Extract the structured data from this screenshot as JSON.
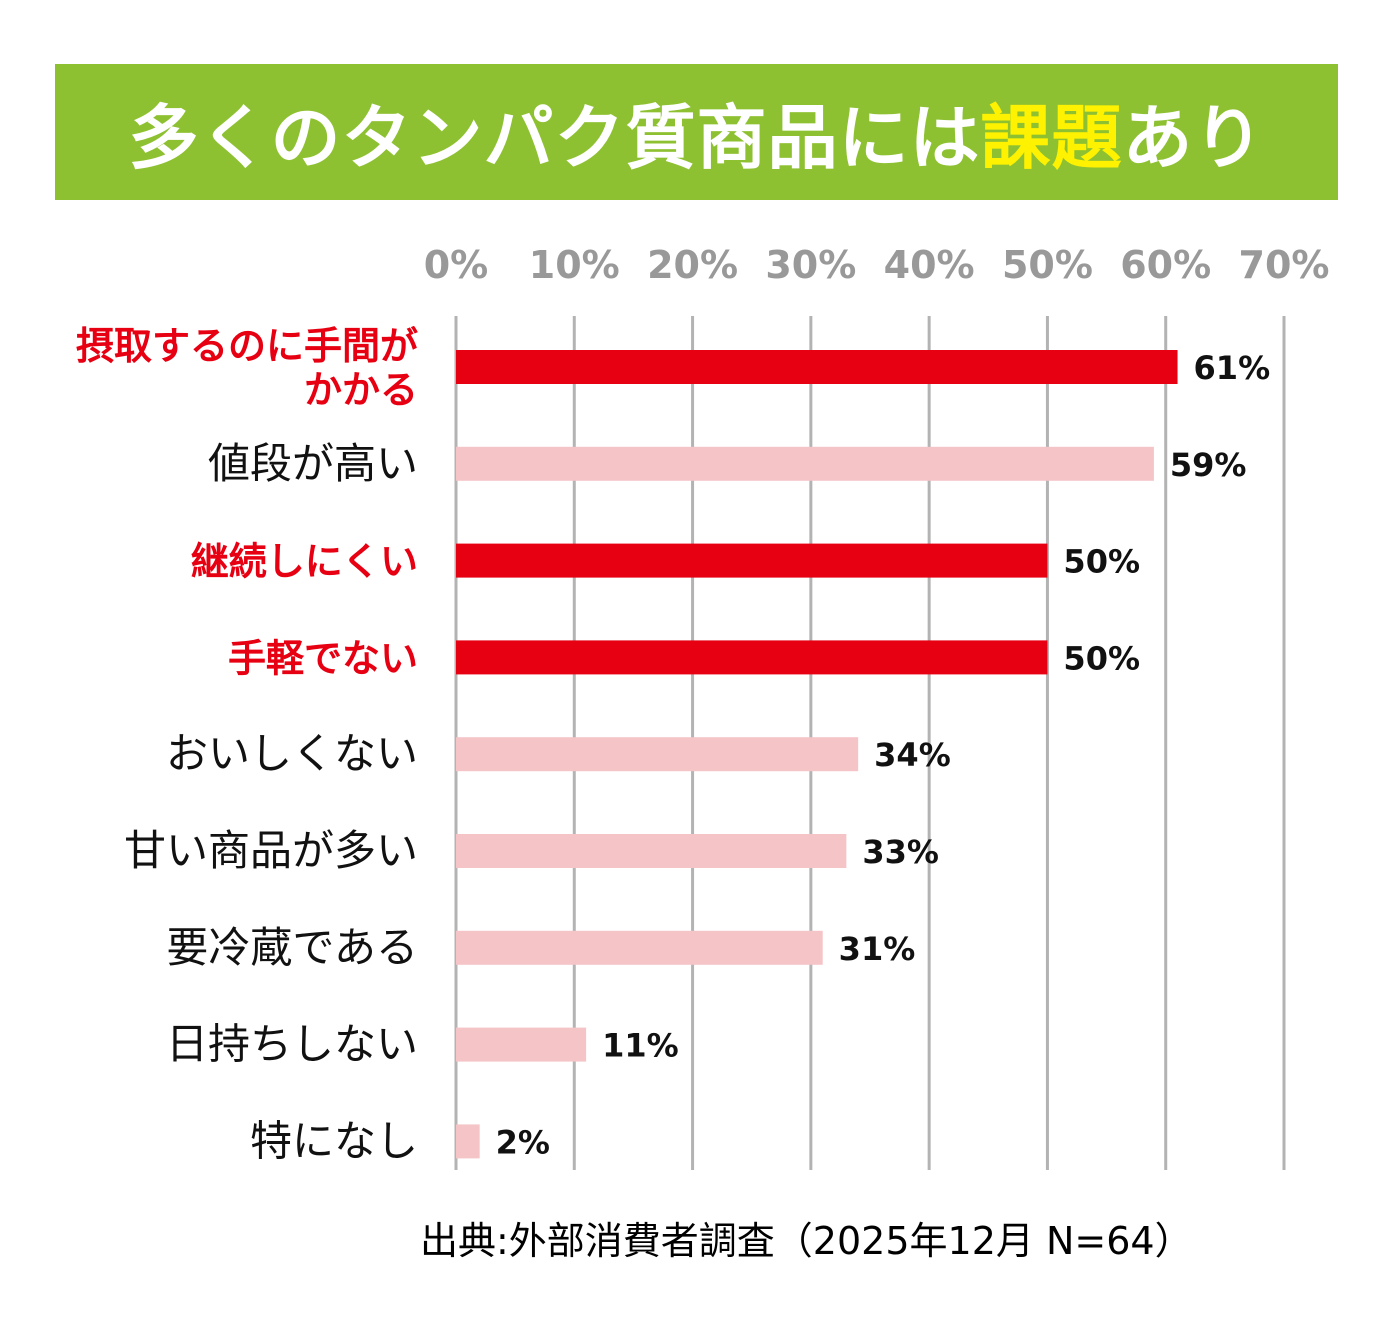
{
  "title": {
    "part1": "多くのタンパク質商品には",
    "highlight": "課題",
    "part2": "あり"
  },
  "source_note": "出典:外部消費者調査（2025年12月 N=64）",
  "colors": {
    "banner": "#8ec131",
    "title_text": "#ffffff",
    "title_highlight": "#fff200",
    "bar_emphasis": "#e60012",
    "bar_normal": "#f4c4c7",
    "label_emphasis": "#e60012",
    "label_normal": "#111111",
    "grid": "#b3b3b3",
    "tick_label": "#999999"
  },
  "chart_data": {
    "type": "bar",
    "orientation": "horizontal",
    "xlim": [
      0,
      70
    ],
    "xticks": [
      "0%",
      "10%",
      "20%",
      "30%",
      "40%",
      "50%",
      "60%",
      "70%"
    ],
    "grid": true,
    "categories": [
      "摂取するのに手間がかかる",
      "値段が高い",
      "継続しにくい",
      "手軽でない",
      "おいしくない",
      "甘い商品が多い",
      "要冷蔵である",
      "日持ちしない",
      "特になし"
    ],
    "category_lines": [
      [
        "摂取するのに手間が",
        "かかる"
      ],
      [
        "値段が高い"
      ],
      [
        "継続しにくい"
      ],
      [
        "手軽でない"
      ],
      [
        "おいしくない"
      ],
      [
        "甘い商品が多い"
      ],
      [
        "要冷蔵である"
      ],
      [
        "日持ちしない"
      ],
      [
        "特になし"
      ]
    ],
    "values": [
      61,
      59,
      50,
      50,
      34,
      33,
      31,
      11,
      2
    ],
    "value_labels": [
      "61%",
      "59%",
      "50%",
      "50%",
      "34%",
      "33%",
      "31%",
      "11%",
      "2%"
    ],
    "emphasized": [
      true,
      false,
      true,
      true,
      false,
      false,
      false,
      false,
      false
    ]
  }
}
